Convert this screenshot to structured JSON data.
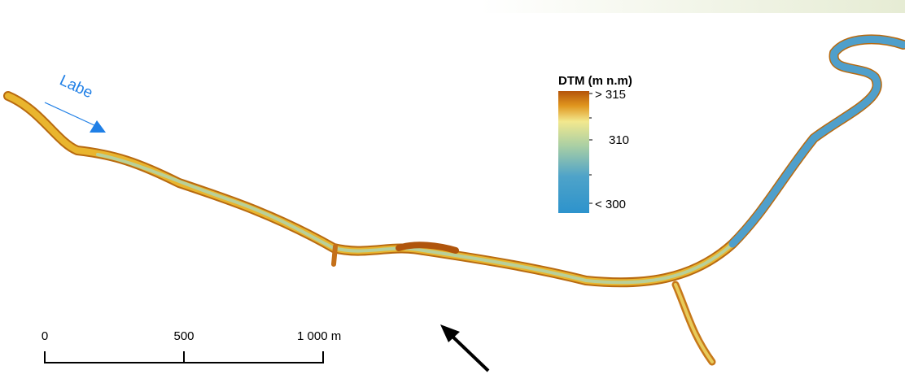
{
  "river_label": "Labe",
  "legend": {
    "title": "DTM (m n.m)",
    "labels": [
      "> 315",
      "310",
      "< 300"
    ]
  },
  "scale_bar": {
    "labels": [
      "0",
      "500",
      "1 000 m"
    ]
  }
}
